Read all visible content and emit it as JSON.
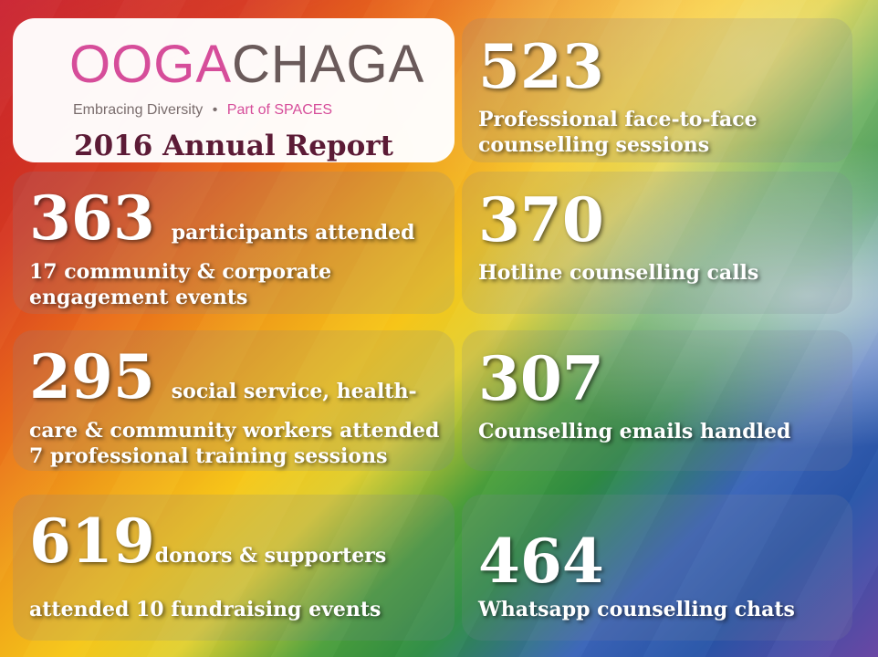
{
  "header": {
    "logo_ooga": "OOGA",
    "logo_chaga": "CHAGA",
    "tagline_left": "Embracing Diversity",
    "tagline_dot": "•",
    "tagline_right": "Part of SPACES",
    "title": "2016 Annual Report"
  },
  "stats": {
    "face_to_face": {
      "number": "523",
      "text": "Professional face-to-face\ncounselling sessions"
    },
    "participants": {
      "number": "363",
      "inline_text": "participants attended",
      "text": "17 community & corporate\nengagement events"
    },
    "hotline": {
      "number": "370",
      "text": "Hotline counselling calls"
    },
    "workers": {
      "number": "295",
      "inline_text": "social service, health-",
      "text": "care & community workers attended\n7 professional training sessions"
    },
    "emails": {
      "number": "307",
      "text": "Counselling emails handled"
    },
    "donors": {
      "number": "619",
      "inline_text": "donors & supporters",
      "text": "attended 10 fundraising events"
    },
    "whatsapp": {
      "number": "464",
      "text": "Whatsapp counselling chats"
    }
  },
  "colors": {
    "brand_pink": "#d64d9a",
    "brand_brown": "#6a5a5a",
    "title_maroon": "#5c1b36"
  }
}
